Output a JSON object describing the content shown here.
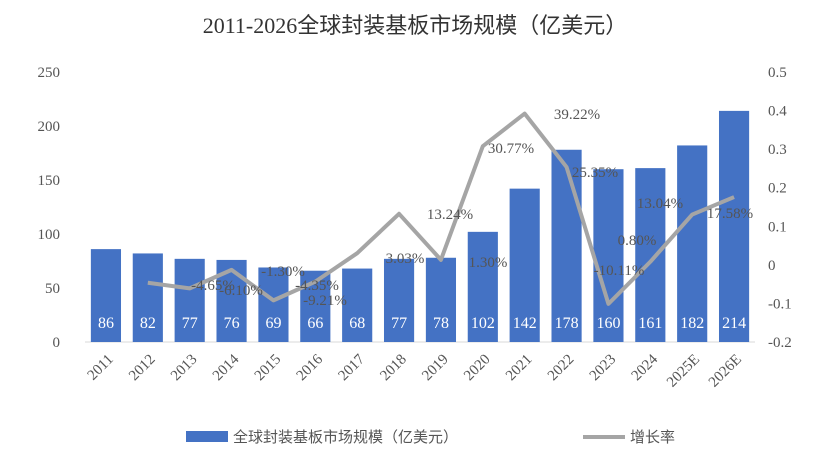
{
  "chart_data": {
    "type": "bar+line",
    "title": "2011-2026全球封装基板市场规模（亿美元）",
    "categories": [
      "2011",
      "2012",
      "2013",
      "2014",
      "2015",
      "2016",
      "2017",
      "2018",
      "2019",
      "2020",
      "2021",
      "2022",
      "2023",
      "2024",
      "2025E",
      "2026E"
    ],
    "series": [
      {
        "name": "全球封装基板市场规模（亿美元）",
        "type": "bar",
        "axis": "left",
        "color": "#4472C4",
        "values": [
          86,
          82,
          77,
          76,
          69,
          66,
          68,
          77,
          78,
          102,
          142,
          178,
          160,
          161,
          182,
          214
        ],
        "labels": [
          "86",
          "82",
          "77",
          "76",
          "69",
          "66",
          "68",
          "77",
          "78",
          "102",
          "142",
          "178",
          "160",
          "161",
          "182",
          "214"
        ]
      },
      {
        "name": "增长率",
        "type": "line",
        "axis": "right",
        "color": "#A5A5A5",
        "values": [
          null,
          -0.0465,
          -0.061,
          -0.013,
          -0.0921,
          -0.0435,
          0.0303,
          0.1324,
          0.013,
          0.3077,
          0.3922,
          0.2535,
          -0.1011,
          0.008,
          0.1304,
          0.1758
        ],
        "labels": [
          "",
          "-4.65%",
          "-6.10%",
          "-1.30%",
          "-9.21%",
          "-4.35%",
          "3.03%",
          "13.24%",
          "1.30%",
          "30.77%",
          "39.22%",
          "25.35%",
          "-10.11%",
          "0.80%",
          "13.04%",
          "17.58%"
        ]
      }
    ],
    "y_left": {
      "range": [
        0,
        250
      ],
      "ticks": [
        "0",
        "50",
        "100",
        "150",
        "200",
        "250"
      ]
    },
    "y_right": {
      "range": [
        -0.2,
        0.5
      ],
      "ticks": [
        "-0.2",
        "-0.1",
        "0",
        "0.1",
        "0.2",
        "0.3",
        "0.4",
        "0.5"
      ]
    },
    "grid": false,
    "legend_position": "bottom"
  }
}
